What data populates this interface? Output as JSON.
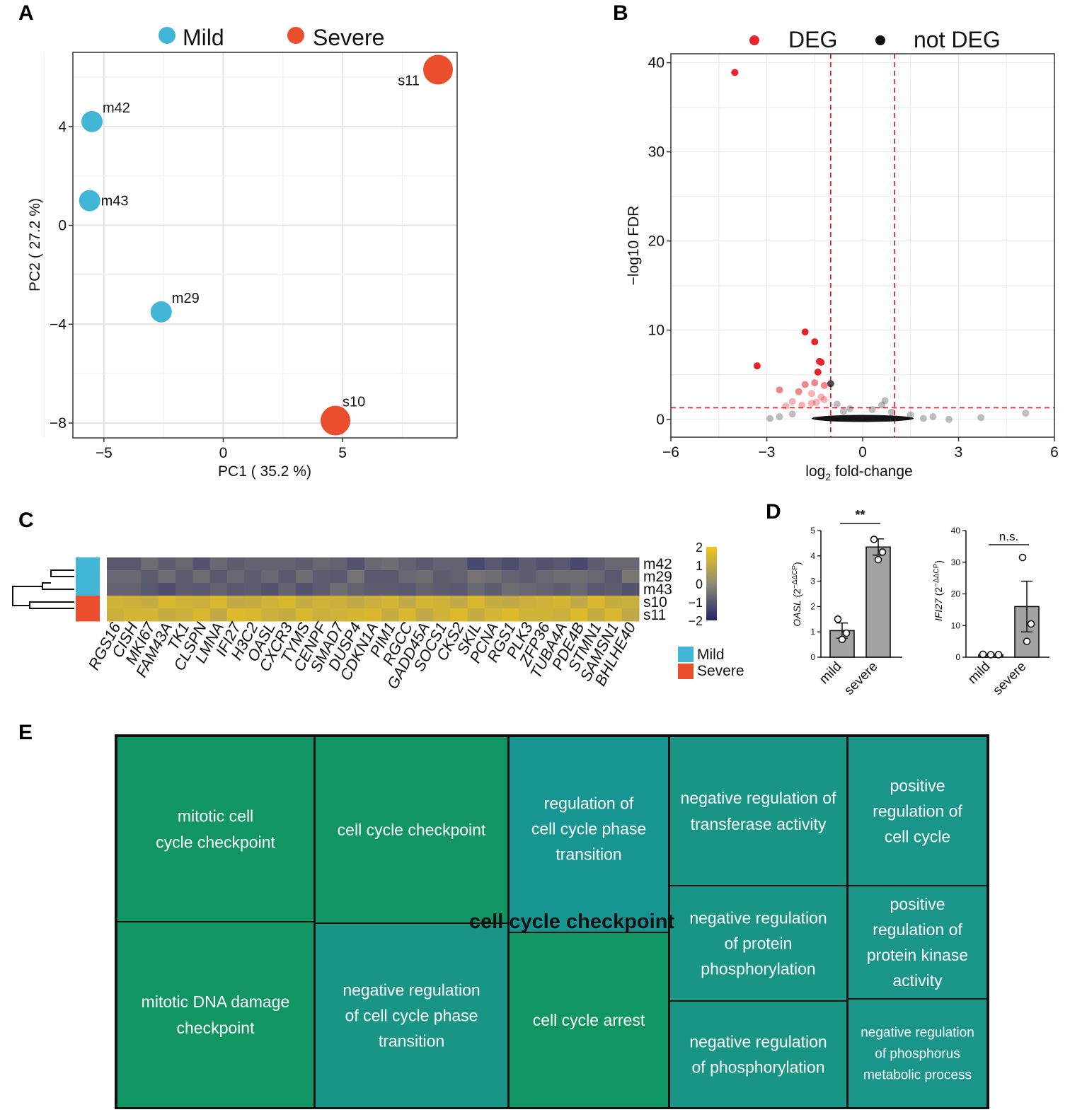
{
  "figure": {
    "panel_letters": [
      "A",
      "B",
      "C",
      "D",
      "E"
    ]
  },
  "colors": {
    "mild": "#41B6D6",
    "severe": "#EA4E2C",
    "deg": "#E8242B",
    "not_deg": "#111111",
    "cutoff_line": "#E8242B",
    "heat_low": "#24236A",
    "heat_mid": "#8E8C74",
    "heat_high": "#F2C618",
    "bar_fill": "#A3A3A3",
    "tree_green": "#119563",
    "tree_teal": "#1A9683"
  },
  "chart_data": [
    {
      "panel": "A",
      "type": "scatter",
      "title": "",
      "xlabel": "PC1 ( 35.2 %)",
      "ylabel": "PC2 ( 27.2 %)",
      "xlim": [
        -6.3,
        9.8
      ],
      "ylim": [
        -8.6,
        7.0
      ],
      "xticks": [
        -5,
        0,
        5
      ],
      "xtick_labels": [
        "−5",
        "0",
        "5"
      ],
      "yticks": [
        -8,
        -4,
        0,
        4
      ],
      "ytick_labels": [
        "−8",
        "−4",
        "0",
        "4"
      ],
      "grid": true,
      "legend": {
        "position": "top",
        "entries": [
          "Mild",
          "Severe"
        ]
      },
      "series": [
        {
          "name": "Mild",
          "points": [
            {
              "label": "m42",
              "x": -5.5,
              "y": 4.2
            },
            {
              "label": "m43",
              "x": -5.6,
              "y": 1.0
            },
            {
              "label": "m29",
              "x": -2.6,
              "y": -3.5
            }
          ]
        },
        {
          "name": "Severe",
          "points": [
            {
              "label": "s11",
              "x": 9.0,
              "y": 6.3
            },
            {
              "label": "s10",
              "x": 4.7,
              "y": -7.9
            }
          ]
        }
      ]
    },
    {
      "panel": "B",
      "type": "scatter",
      "title": "",
      "xlabel_main": "log",
      "xlabel_sub": "2",
      "xlabel_rest": " fold-change",
      "ylabel": "−log10 FDR",
      "xlim": [
        -6,
        6
      ],
      "ylim": [
        -2,
        41
      ],
      "xticks": [
        -6,
        -3,
        0,
        3,
        6
      ],
      "xtick_labels": [
        "−6",
        "−3",
        "0",
        "3",
        "6"
      ],
      "yticks": [
        0,
        10,
        20,
        30,
        40
      ],
      "ytick_labels": [
        "0",
        "10",
        "20",
        "30",
        "40"
      ],
      "grid": true,
      "legend": {
        "position": "top",
        "entries": [
          "DEG",
          "not DEG"
        ]
      },
      "thresholds": {
        "log2fc": [
          -1,
          1
        ],
        "neg_log10_fdr": 1.3
      },
      "series": [
        {
          "name": "DEG",
          "points": [
            {
              "x": -4.0,
              "y": 38.9
            },
            {
              "x": -1.8,
              "y": 9.8
            },
            {
              "x": -1.5,
              "y": 8.7
            },
            {
              "x": -3.3,
              "y": 6.0
            },
            {
              "x": -1.35,
              "y": 6.5
            },
            {
              "x": -1.3,
              "y": 6.4
            },
            {
              "x": -1.4,
              "y": 5.3
            },
            {
              "x": -1.5,
              "y": 4.1
            },
            {
              "x": -1.8,
              "y": 3.9
            },
            {
              "x": -1.2,
              "y": 3.8
            },
            {
              "x": -2.6,
              "y": 3.3
            },
            {
              "x": -2.0,
              "y": 3.1
            },
            {
              "x": -1.6,
              "y": 2.9
            },
            {
              "x": -1.3,
              "y": 2.5
            },
            {
              "x": -2.2,
              "y": 2.0
            },
            {
              "x": -1.9,
              "y": 1.6
            },
            {
              "x": -1.6,
              "y": 1.8
            },
            {
              "x": -2.4,
              "y": 1.5
            },
            {
              "x": -1.2,
              "y": 2.2
            },
            {
              "x": -1.45,
              "y": 1.9
            }
          ]
        },
        {
          "name": "not DEG",
          "points": [
            {
              "x": -1.0,
              "y": 4.0
            },
            {
              "x": 0.7,
              "y": 2.1
            },
            {
              "x": 0.6,
              "y": 1.6
            },
            {
              "x": -0.8,
              "y": 1.7
            },
            {
              "x": 5.1,
              "y": 0.7
            },
            {
              "x": 3.7,
              "y": 0.2
            },
            {
              "x": 2.7,
              "y": 0.0
            },
            {
              "x": 2.2,
              "y": 0.3
            },
            {
              "x": -2.6,
              "y": 0.3
            },
            {
              "x": -2.9,
              "y": 0.1
            },
            {
              "x": 1.9,
              "y": 0.1
            },
            {
              "x": -0.4,
              "y": 1.2
            },
            {
              "x": 0.3,
              "y": 1.1
            },
            {
              "x": -0.6,
              "y": 0.9
            },
            {
              "x": 0.9,
              "y": 0.8
            },
            {
              "x": -2.2,
              "y": 0.6
            },
            {
              "x": 1.5,
              "y": 0.5
            }
          ]
        }
      ]
    },
    {
      "panel": "C",
      "type": "heatmap",
      "title": "",
      "rows": [
        "m42",
        "m29",
        "m43",
        "s10",
        "s11"
      ],
      "row_groups": [
        "Mild",
        "Mild",
        "Mild",
        "Severe",
        "Severe"
      ],
      "columns": [
        "RGS16",
        "CISH",
        "MKI67",
        "FAM43A",
        "TK1",
        "CLSPN",
        "LMNA",
        "IFI27",
        "H3C2",
        "OASL",
        "CXCR3",
        "TYMS",
        "CENPF",
        "SMAD7",
        "DUSP4",
        "CDKN1A",
        "PIM1",
        "RGCC",
        "GADD45A",
        "SOCS1",
        "CKS2",
        "SKIL",
        "PCNA",
        "RGS1",
        "PLK3",
        "ZFP36",
        "TUBA4A",
        "PDE4B",
        "STMN1",
        "SAMSN1",
        "BHLHE40"
      ],
      "values": [
        [
          -1.0,
          -1.0,
          -0.6,
          -0.9,
          -0.7,
          -1.1,
          -0.7,
          -0.9,
          -0.8,
          -0.8,
          -0.8,
          -0.9,
          -0.7,
          -0.8,
          -1.1,
          -0.7,
          -0.6,
          -0.8,
          -1.0,
          -0.8,
          -0.8,
          -1.3,
          -1.0,
          -1.2,
          -0.9,
          -1.1,
          -1.0,
          -1.3,
          -0.9,
          -0.7,
          -0.7
        ],
        [
          -0.7,
          -0.7,
          -0.9,
          -0.6,
          -0.9,
          -0.6,
          -1.0,
          -0.7,
          -0.9,
          -0.7,
          -1.0,
          -0.6,
          -0.9,
          -1.0,
          -0.5,
          -1.0,
          -1.0,
          -0.7,
          -0.6,
          -0.9,
          -0.8,
          -0.5,
          -0.6,
          -0.8,
          -0.9,
          -0.7,
          -0.6,
          -0.6,
          -0.7,
          -1.0,
          -0.4
        ],
        [
          -0.8,
          -0.8,
          -1.0,
          -1.2,
          -0.9,
          -1.0,
          -0.8,
          -1.0,
          -0.9,
          -1.1,
          -0.8,
          -1.1,
          -0.9,
          -0.6,
          -0.8,
          -0.9,
          -0.9,
          -1.0,
          -0.8,
          -0.9,
          -1.0,
          -0.7,
          -0.9,
          -0.6,
          -0.7,
          -0.8,
          -0.9,
          -0.7,
          -1.0,
          -0.9,
          -1.1
        ],
        [
          1.3,
          1.2,
          1.1,
          1.5,
          1.3,
          1.2,
          1.5,
          1.0,
          1.1,
          1.3,
          1.5,
          1.1,
          1.3,
          1.2,
          1.0,
          1.2,
          1.4,
          1.0,
          1.4,
          1.3,
          1.0,
          1.5,
          1.1,
          1.0,
          1.2,
          1.3,
          1.4,
          1.0,
          1.5,
          1.1,
          1.2
        ],
        [
          1.2,
          1.4,
          1.4,
          1.1,
          1.2,
          1.5,
          1.0,
          1.6,
          1.5,
          1.2,
          1.1,
          1.5,
          1.2,
          1.3,
          1.4,
          1.5,
          1.1,
          1.5,
          1.0,
          1.3,
          1.6,
          1.1,
          1.4,
          1.6,
          1.3,
          1.3,
          1.2,
          1.6,
          1.1,
          1.5,
          1.0
        ]
      ],
      "scale_ticks": [
        2,
        1,
        0,
        -1,
        -2
      ],
      "scale_tick_labels": [
        "2",
        "1",
        "0",
        "−1",
        "−2"
      ],
      "legend_entries": [
        "Mild",
        "Severe"
      ]
    },
    {
      "panel": "D",
      "type": "bar",
      "charts": [
        {
          "title": "",
          "ylabel_gene": "OASL",
          "ylabel_formula": " (2",
          "ylabel_sup": "−ΔΔCP",
          "ylabel_close": ")",
          "categories": [
            "mild",
            "severe"
          ],
          "values": [
            1.05,
            4.35
          ],
          "sem": [
            0.3,
            0.32
          ],
          "points": [
            [
              1.5,
              0.95,
              0.7
            ],
            [
              4.65,
              4.15,
              3.85
            ]
          ],
          "ylim": [
            0,
            5
          ],
          "yticks": [
            0,
            1,
            2,
            3,
            4,
            5
          ],
          "significance": "**"
        },
        {
          "title": "",
          "ylabel_gene": "IFI27",
          "ylabel_formula": " (2",
          "ylabel_sup": "−ΔΔCP",
          "ylabel_close": ")",
          "categories": [
            "mild",
            "severe"
          ],
          "values": [
            0.8,
            16.0
          ],
          "sem": [
            0.2,
            8.0
          ],
          "points": [
            [
              0.9,
              0.8,
              0.8
            ],
            [
              31.5,
              10.5,
              5.0
            ]
          ],
          "ylim": [
            0,
            40
          ],
          "yticks": [
            0,
            10,
            20,
            30,
            40
          ],
          "significance": "n.s."
        }
      ]
    },
    {
      "panel": "E",
      "type": "treemap",
      "title": "",
      "group_label": "cell cycle checkpoint",
      "tiles": [
        {
          "label": "mitotic cell cycle checkpoint",
          "lines": [
            "mitotic cell",
            "cycle checkpoint"
          ],
          "color": "green"
        },
        {
          "label": "mitotic DNA damage checkpoint",
          "lines": [
            "mitotic DNA damage",
            "checkpoint"
          ],
          "color": "green"
        },
        {
          "label": "cell cycle checkpoint",
          "lines": [
            "cell cycle checkpoint"
          ],
          "color": "green"
        },
        {
          "label": "negative regulation of cell cycle phase transition",
          "lines": [
            "negative regulation",
            "of cell cycle phase",
            "transition"
          ],
          "color": "mid"
        },
        {
          "label": "regulation of cell cycle phase transition",
          "lines": [
            "regulation of",
            "cell cycle phase",
            "transition"
          ],
          "color": "teal"
        },
        {
          "label": "cell cycle arrest",
          "lines": [
            "cell cycle arrest"
          ],
          "color": "green"
        },
        {
          "label": "negative regulation of transferase activity",
          "lines": [
            "negative regulation of",
            "transferase activity"
          ],
          "color": "mid"
        },
        {
          "label": "negative regulation of protein phosphorylation",
          "lines": [
            "negative regulation",
            "of protein",
            "phosphorylation"
          ],
          "color": "mid"
        },
        {
          "label": "negative regulation of phosphorylation",
          "lines": [
            "negative regulation",
            "of phosphorylation"
          ],
          "color": "mid"
        },
        {
          "label": "positive regulation of cell cycle",
          "lines": [
            "positive",
            "regulation of",
            "cell cycle"
          ],
          "color": "teal"
        },
        {
          "label": "positive regulation of protein kinase activity",
          "lines": [
            "positive",
            "regulation of",
            "protein kinase",
            "activity"
          ],
          "color": "teal"
        },
        {
          "label": "negative regulation of phosphorus metabolic process",
          "lines": [
            "negative regulation",
            "of phosphorus",
            "metabolic process"
          ],
          "color": "teal"
        }
      ]
    }
  ]
}
